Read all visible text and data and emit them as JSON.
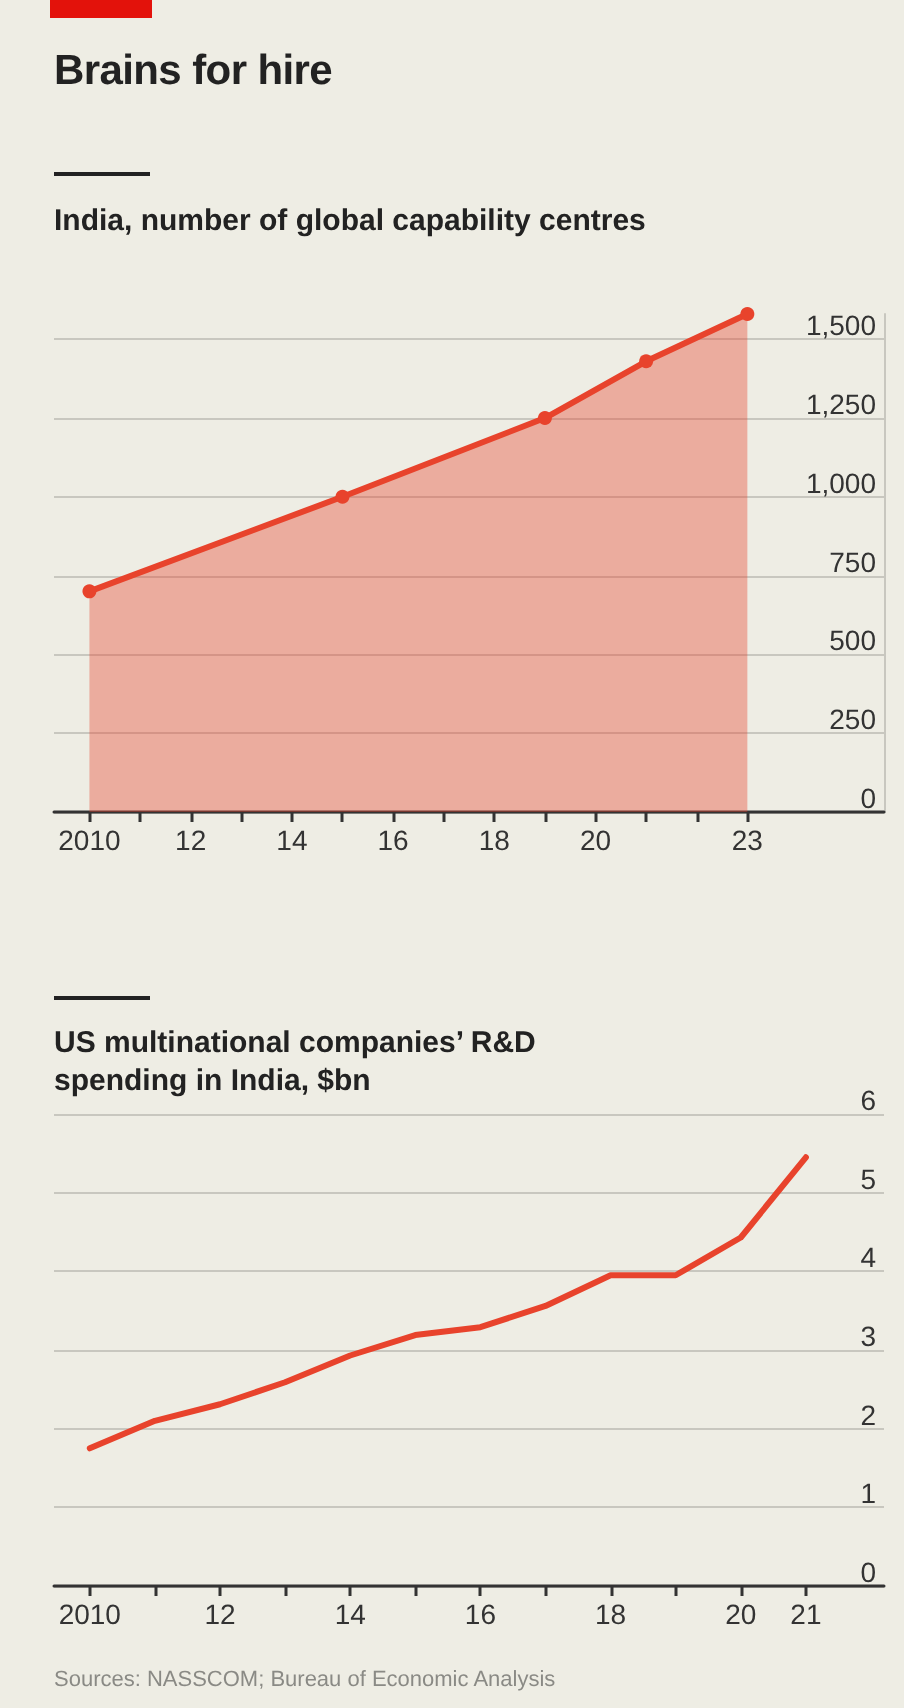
{
  "chart_data": [
    {
      "type": "area",
      "title": "Brains for hire",
      "subtitle": "India, number of global capability centres",
      "x": [
        2010,
        2015,
        2019,
        2021,
        2023
      ],
      "series": [
        {
          "color": "#e8432c",
          "values": [
            700,
            1000,
            1250,
            1430,
            1580
          ]
        }
      ],
      "xlim": [
        2009.3,
        2025.7
      ],
      "xticks": [
        {
          "value": 2010,
          "label": "2010"
        },
        {
          "value": 2011,
          "label": null
        },
        {
          "value": 2012,
          "label": "12"
        },
        {
          "value": 2013,
          "label": null
        },
        {
          "value": 2014,
          "label": "14"
        },
        {
          "value": 2015,
          "label": null
        },
        {
          "value": 2016,
          "label": "16"
        },
        {
          "value": 2017,
          "label": null
        },
        {
          "value": 2018,
          "label": "18"
        },
        {
          "value": 2019,
          "label": null
        },
        {
          "value": 2020,
          "label": "20"
        },
        {
          "value": 2021,
          "label": null
        },
        {
          "value": 2022,
          "label": null
        },
        {
          "value": 2023,
          "label": "23"
        }
      ],
      "ylim": [
        0,
        1580
      ],
      "yticks": [
        0,
        250,
        500,
        750,
        {
          "value": 1000,
          "label": "1,000"
        },
        {
          "value": 1250,
          "label": "1,250"
        },
        {
          "value": 1500,
          "label": "1,500"
        }
      ],
      "grid": "y",
      "marker": "circle",
      "line_style": "solid"
    },
    {
      "type": "line",
      "title": "US multinational companies’ R&D spending in India, $bn",
      "x": [
        2010,
        2011,
        2012,
        2013,
        2014,
        2015,
        2016,
        2017,
        2018,
        2019,
        2020,
        2021
      ],
      "series": [
        {
          "color": "#e8432c",
          "values": [
            1.75,
            2.1,
            2.31,
            2.59,
            2.93,
            3.19,
            3.29,
            3.56,
            3.95,
            3.95,
            4.43,
            5.45
          ]
        }
      ],
      "xlim": [
        2009.45,
        2022.2
      ],
      "xticks": [
        {
          "value": 2010,
          "label": "2010"
        },
        {
          "value": 2011,
          "label": null
        },
        {
          "value": 2012,
          "label": "12"
        },
        {
          "value": 2013,
          "label": null
        },
        {
          "value": 2014,
          "label": "14"
        },
        {
          "value": 2015,
          "label": null
        },
        {
          "value": 2016,
          "label": "16"
        },
        {
          "value": 2017,
          "label": null
        },
        {
          "value": 2018,
          "label": "18"
        },
        {
          "value": 2019,
          "label": null
        },
        {
          "value": 2020,
          "label": "20"
        },
        {
          "value": 2021,
          "label": "21"
        }
      ],
      "ylim": [
        0,
        6
      ],
      "yticks": [
        0,
        1,
        2,
        3,
        4,
        5,
        6
      ],
      "grid": "y",
      "marker": "none",
      "line_style": "solid",
      "annotations": [
        "Sources: NASSCOM; Bureau of Economic Analysis"
      ]
    }
  ]
}
